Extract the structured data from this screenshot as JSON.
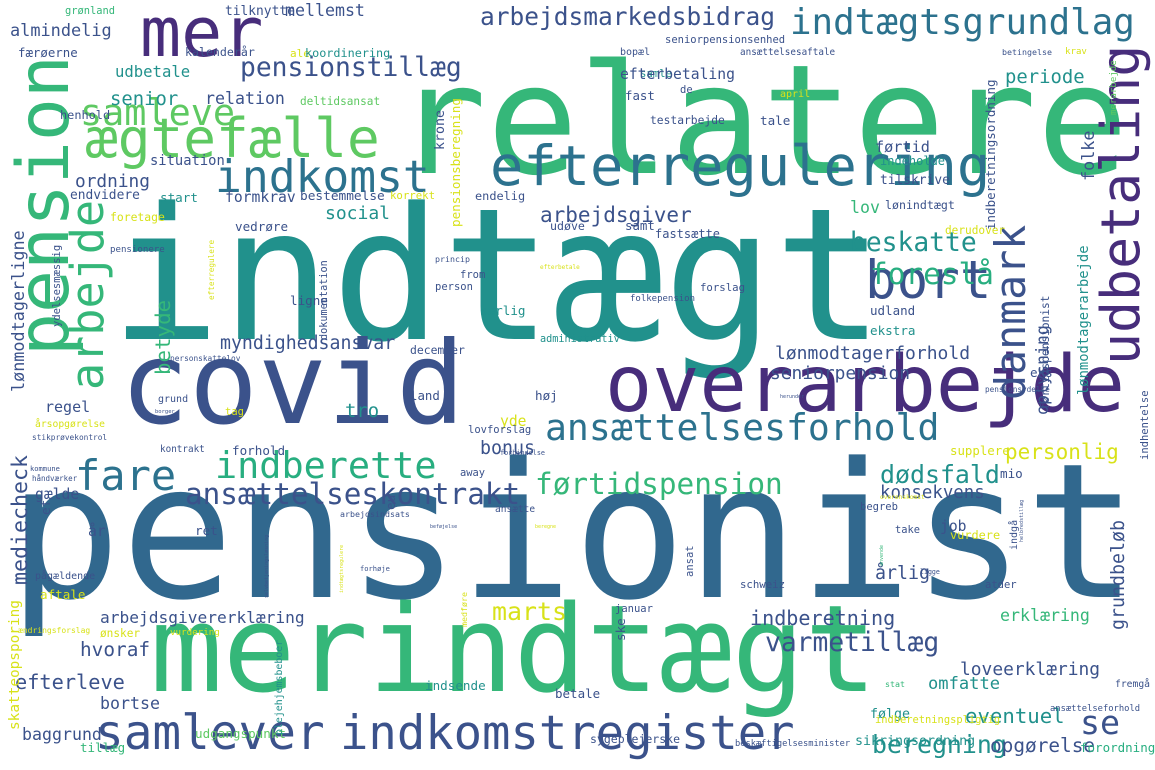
{
  "colors": {
    "purple": "#472d7b",
    "darkblue": "#3b528b",
    "blue": "#2c728e",
    "teal": "#21918c",
    "seagreen": "#28ae80",
    "green": "#5ec962",
    "lime": "#addc30",
    "yellow": "#d8e219",
    "darkpurple": "#440154"
  },
  "words": [
    {
      "text": "pensionist",
      "color": "#31688e"
    },
    {
      "text": "indtægt",
      "color": "#21918c"
    },
    {
      "text": "relatere",
      "color": "#35b779"
    },
    {
      "text": "covid",
      "color": "#3b528b"
    },
    {
      "text": "merindtægt",
      "color": "#35b779"
    },
    {
      "text": "overarbejde",
      "color": "#472d7b"
    },
    {
      "text": "pension",
      "color": "#35b779"
    },
    {
      "text": "mer",
      "color": "#472d7b"
    },
    {
      "text": "efterregulering",
      "color": "#2c728e"
    },
    {
      "text": "udbetaling",
      "color": "#472d7b"
    },
    {
      "text": "ægtefælle",
      "color": "#5ec962"
    },
    {
      "text": "indkomst",
      "color": "#2c728e"
    },
    {
      "text": "indtægtsgrundlag",
      "color": "#2c728e"
    },
    {
      "text": "bort",
      "color": "#3b528b"
    },
    {
      "text": "arbejde",
      "color": "#35b779"
    },
    {
      "text": "samlever",
      "color": "#3b528b"
    },
    {
      "text": "indkomstregister",
      "color": "#3b528b"
    },
    {
      "text": "ansættelsesforhold",
      "color": "#2c728e"
    },
    {
      "text": "indberette",
      "color": "#28ae80"
    },
    {
      "text": "fare",
      "color": "#2c728e"
    },
    {
      "text": "danmark",
      "color": "#3b528b"
    },
    {
      "text": "samleve",
      "color": "#5ec962"
    },
    {
      "text": "arbejdsmarkedsbidrag",
      "color": "#3b528b"
    },
    {
      "text": "pensionstillæg",
      "color": "#3b528b"
    },
    {
      "text": "ansættelseskontrakt",
      "color": "#3b528b"
    },
    {
      "text": "førtidspension",
      "color": "#35b779"
    },
    {
      "text": "beskatte",
      "color": "#21918c"
    },
    {
      "text": "myndighedsansvar",
      "color": "#3b528b"
    },
    {
      "text": "foreslå",
      "color": "#28ae80"
    },
    {
      "text": "marts",
      "color": "#d8e219"
    },
    {
      "text": "varmetillæg",
      "color": "#3b528b"
    },
    {
      "text": "beregning",
      "color": "#21918c"
    },
    {
      "text": "dødsfald",
      "color": "#21918c"
    },
    {
      "text": "lov",
      "color": "#35b779"
    },
    {
      "text": "social",
      "color": "#21918c"
    },
    {
      "text": "betyde",
      "color": "#35b779"
    },
    {
      "text": "se",
      "color": "#3b528b"
    },
    {
      "text": "samle",
      "color": "#21918c"
    },
    {
      "text": "udbetale",
      "color": "#21918c"
    },
    {
      "text": "mediecheck",
      "color": "#3b528b"
    },
    {
      "text": "efterleve",
      "color": "#3b528b"
    },
    {
      "text": "lønmodtagerforhold",
      "color": "#3b528b"
    },
    {
      "text": "seniorpension",
      "color": "#3b528b"
    },
    {
      "text": "personlig",
      "color": "#d8e219"
    },
    {
      "text": "konsekvens",
      "color": "#3b528b"
    },
    {
      "text": "indberetning",
      "color": "#3b528b"
    },
    {
      "text": "erklæring",
      "color": "#35b779"
    },
    {
      "text": "arbejdsgivererklæring",
      "color": "#3b528b"
    },
    {
      "text": "arbejdsgiver",
      "color": "#3b528b"
    },
    {
      "text": "grundbeløb",
      "color": "#3b528b"
    },
    {
      "text": "loveerklæring",
      "color": "#3b528b"
    },
    {
      "text": "eventuel",
      "color": "#21918c"
    },
    {
      "text": "opgørelse",
      "color": "#3b528b"
    },
    {
      "text": "oplysning",
      "color": "#3b528b"
    },
    {
      "text": "omfatte",
      "color": "#21918c"
    },
    {
      "text": "hvoraf",
      "color": "#3b528b"
    },
    {
      "text": "bortse",
      "color": "#3b528b"
    },
    {
      "text": "senior",
      "color": "#21918c"
    },
    {
      "text": "relation",
      "color": "#3b528b"
    },
    {
      "text": "mellemst",
      "color": "#3b528b"
    },
    {
      "text": "almindelig",
      "color": "#3b528b"
    },
    {
      "text": "efterbetaling",
      "color": "#3b528b"
    },
    {
      "text": "periode",
      "color": "#21918c"
    },
    {
      "text": "lønmodtagerligne",
      "color": "#3b528b"
    },
    {
      "text": "regel",
      "color": "#3b528b"
    },
    {
      "text": "bonus",
      "color": "#3b528b"
    },
    {
      "text": "tro",
      "color": "#21918c"
    },
    {
      "text": "årlig",
      "color": "#3b528b"
    },
    {
      "text": "lønmodtagerarbejde",
      "color": "#21918c"
    },
    {
      "text": "indberetningsordning",
      "color": "#3b528b"
    },
    {
      "text": "ordning",
      "color": "#3b528b"
    },
    {
      "text": "folke",
      "color": "#3b528b"
    },
    {
      "text": "førtid",
      "color": "#3b528b"
    },
    {
      "text": "merarbejde",
      "color": "#5ec962"
    },
    {
      "text": "baggrund",
      "color": "#3b528b"
    },
    {
      "text": "tillæg",
      "color": "#35b779"
    },
    {
      "text": "følge",
      "color": "#21918c"
    },
    {
      "text": "sikringsordning",
      "color": "#21918c"
    },
    {
      "text": "forordning",
      "color": "#28ae80"
    },
    {
      "text": "sygeplejerske",
      "color": "#3b528b"
    },
    {
      "text": "beskæftigelsesminister",
      "color": "#3b528b"
    },
    {
      "text": "indberetningspligtig",
      "color": "#d8e219"
    },
    {
      "text": "udgangspunkt",
      "color": "#5ec962"
    },
    {
      "text": "plejehjemsbeboer",
      "color": "#21918c"
    },
    {
      "text": "betale",
      "color": "#3b528b"
    },
    {
      "text": "stat",
      "color": "#35b779"
    },
    {
      "text": "fremgå",
      "color": "#3b528b"
    },
    {
      "text": "ansættelseforhold",
      "color": "#3b528b"
    },
    {
      "text": "grønland",
      "color": "#35b779"
    },
    {
      "text": "tilknytte",
      "color": "#3b528b"
    },
    {
      "text": "færøerne",
      "color": "#3b528b"
    },
    {
      "text": "kalenderår",
      "color": "#3b528b"
    },
    {
      "text": "ale",
      "color": "#d8e219"
    },
    {
      "text": "koordinering",
      "color": "#21918c"
    },
    {
      "text": "bopæl",
      "color": "#3b528b"
    },
    {
      "text": "ansættelsesaftale",
      "color": "#3b528b"
    },
    {
      "text": "betingelse",
      "color": "#3b528b"
    },
    {
      "text": "krav",
      "color": "#d8e219"
    },
    {
      "text": "seniorpensionsenhed",
      "color": "#3b528b"
    },
    {
      "text": "henhold",
      "color": "#3b528b"
    },
    {
      "text": "deltidsansat",
      "color": "#5ec962"
    },
    {
      "text": "fast",
      "color": "#3b528b"
    },
    {
      "text": "de",
      "color": "#3b528b"
    },
    {
      "text": "april",
      "color": "#d8e219"
    },
    {
      "text": "testarbejde",
      "color": "#3b528b"
    },
    {
      "text": "tale",
      "color": "#3b528b"
    },
    {
      "text": "krone",
      "color": "#3b528b"
    },
    {
      "text": "situation",
      "color": "#3b528b"
    },
    {
      "text": "indeholde",
      "color": "#21918c"
    },
    {
      "text": "tilskrive",
      "color": "#3b528b"
    },
    {
      "text": "start",
      "color": "#21918c"
    },
    {
      "text": "formkrav",
      "color": "#3b528b"
    },
    {
      "text": "bestemmelse",
      "color": "#3b528b"
    },
    {
      "text": "korrekt",
      "color": "#d8e219"
    },
    {
      "text": "endelig",
      "color": "#3b528b"
    },
    {
      "text": "endvidere",
      "color": "#3b528b"
    },
    {
      "text": "foretage",
      "color": "#d8e219"
    },
    {
      "text": "lønindtægt",
      "color": "#3b528b"
    },
    {
      "text": "vedrøre",
      "color": "#3b528b"
    },
    {
      "text": "udøve",
      "color": "#3b528b"
    },
    {
      "text": "samt",
      "color": "#3b528b"
    },
    {
      "text": "fastsætte",
      "color": "#3b528b"
    },
    {
      "text": "derudover",
      "color": "#d8e219"
    },
    {
      "text": "pensionsberegning",
      "color": "#d8e219"
    },
    {
      "text": "pensionere",
      "color": "#3b528b"
    },
    {
      "text": "efterregulere",
      "color": "#d8e219"
    },
    {
      "text": "princip",
      "color": "#3b528b"
    },
    {
      "text": "from",
      "color": "#3b528b"
    },
    {
      "text": "person",
      "color": "#3b528b"
    },
    {
      "text": "efterbetale",
      "color": "#d8e219"
    },
    {
      "text": "særlig",
      "color": "#21918c"
    },
    {
      "text": "folkepension",
      "color": "#3b528b"
    },
    {
      "text": "forslag",
      "color": "#3b528b"
    },
    {
      "text": "ligne",
      "color": "#3b528b"
    },
    {
      "text": "dokumentation",
      "color": "#3b528b"
    },
    {
      "text": "udland",
      "color": "#3b528b"
    },
    {
      "text": "førtidspensionist",
      "color": "#3b528b"
    },
    {
      "text": "ydelsesmæssig",
      "color": "#3b528b"
    },
    {
      "text": "personskattelov",
      "color": "#3b528b"
    },
    {
      "text": "december",
      "color": "#3b528b"
    },
    {
      "text": "administrativ",
      "color": "#21918c"
    },
    {
      "text": "ekstra",
      "color": "#21918c"
    },
    {
      "text": "pensionsydelse",
      "color": "#3b528b"
    },
    {
      "text": "herunder",
      "color": "#3b528b"
    },
    {
      "text": "eks",
      "color": "#3b528b"
    },
    {
      "text": "grund",
      "color": "#3b528b"
    },
    {
      "text": "land",
      "color": "#3b528b"
    },
    {
      "text": "høj",
      "color": "#3b528b"
    },
    {
      "text": "borger",
      "color": "#3b528b"
    },
    {
      "text": "tag",
      "color": "#d8e219"
    },
    {
      "text": "yde",
      "color": "#d8e219"
    },
    {
      "text": "årsopgørelse",
      "color": "#d8e219"
    },
    {
      "text": "lovforslag",
      "color": "#3b528b"
    },
    {
      "text": "stikprøvekontrol",
      "color": "#3b528b"
    },
    {
      "text": "indhentelse",
      "color": "#3b528b"
    },
    {
      "text": "håndværker",
      "color": "#3b528b"
    },
    {
      "text": "kontrakt",
      "color": "#3b528b"
    },
    {
      "text": "forhold",
      "color": "#3b528b"
    },
    {
      "text": "forbindelse",
      "color": "#3b528b"
    },
    {
      "text": "supplere",
      "color": "#d8e219"
    },
    {
      "text": "kommune",
      "color": "#3b528b"
    },
    {
      "text": "away",
      "color": "#3b528b"
    },
    {
      "text": "mio",
      "color": "#3b528b"
    },
    {
      "text": "gælde",
      "color": "#3b528b"
    },
    {
      "text": "overenskomst",
      "color": "#d8e219"
    },
    {
      "text": "ansætte",
      "color": "#3b528b"
    },
    {
      "text": "begreb",
      "color": "#3b528b"
    },
    {
      "text": "beregne",
      "color": "#d8e219"
    },
    {
      "text": "job",
      "color": "#3b528b"
    },
    {
      "text": "indgå",
      "color": "#3b528b"
    },
    {
      "text": "år",
      "color": "#3b528b"
    },
    {
      "text": "beføjelse",
      "color": "#3b528b"
    },
    {
      "text": "eu",
      "color": "#3b528b"
    },
    {
      "text": "arbejdsindsats",
      "color": "#3b528b"
    },
    {
      "text": "helbredstillæg",
      "color": "#3b528b"
    },
    {
      "text": "anvende",
      "color": "#35b779"
    },
    {
      "text": "ef",
      "color": "#3b528b"
    },
    {
      "text": "ret",
      "color": "#3b528b"
    },
    {
      "text": "selvbetjeningsløsning",
      "color": "#3b528b"
    },
    {
      "text": "indtægtsregulere",
      "color": "#d8e219"
    },
    {
      "text": "forhøje",
      "color": "#3b528b"
    },
    {
      "text": "ansat",
      "color": "#3b528b"
    },
    {
      "text": "ligge",
      "color": "#3b528b"
    },
    {
      "text": "atder",
      "color": "#3b528b"
    },
    {
      "text": "vurdere",
      "color": "#d8e219"
    },
    {
      "text": "take",
      "color": "#3b528b"
    },
    {
      "text": "pågældende",
      "color": "#3b528b"
    },
    {
      "text": "januar",
      "color": "#3b528b"
    },
    {
      "text": "schweiz",
      "color": "#3b528b"
    },
    {
      "text": "indsende",
      "color": "#21918c"
    },
    {
      "text": "aftale",
      "color": "#d8e219"
    },
    {
      "text": "medføre",
      "color": "#d8e219"
    },
    {
      "text": "ske",
      "color": "#3b528b"
    },
    {
      "text": "skatteopsporing",
      "color": "#d8e219"
    },
    {
      "text": "ændringsforslag",
      "color": "#d8e219"
    },
    {
      "text": "ønsker",
      "color": "#d8e219"
    },
    {
      "text": "vurdering",
      "color": "#d8e219"
    },
    {
      "text": "særskilt",
      "color": "#d8e219"
    },
    {
      "text": "mærke",
      "color": "#d8e219"
    },
    {
      "text": "bofllbud",
      "color": "#d8e219"
    },
    {
      "text": "ændre",
      "color": "#d8e219"
    },
    {
      "text": "øverste",
      "color": "#d8e219"
    }
  ]
}
